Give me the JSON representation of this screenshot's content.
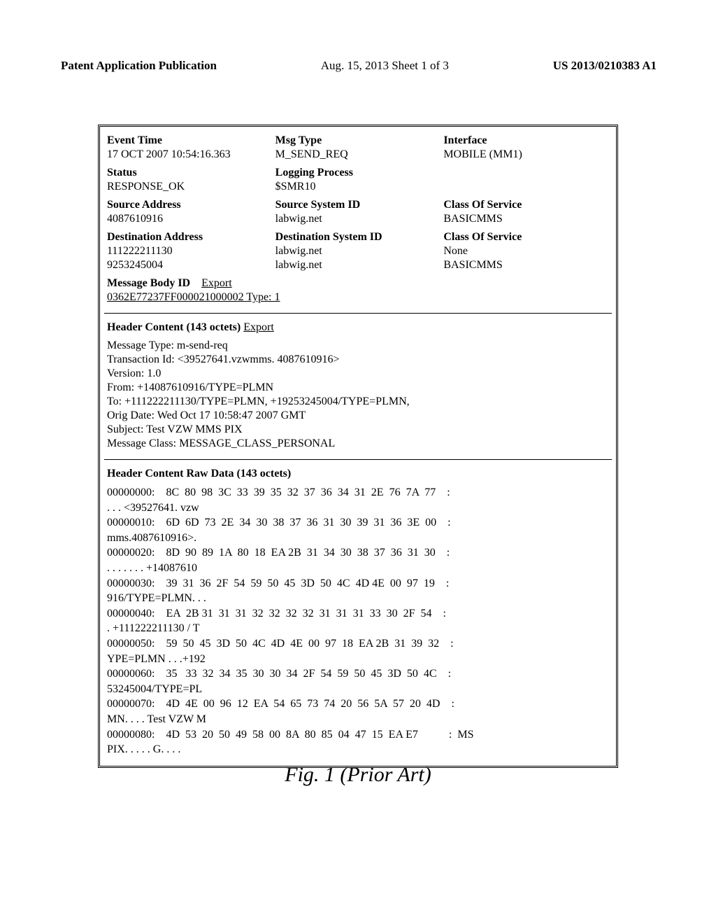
{
  "pageHeader": {
    "left": "Patent Application Publication",
    "mid": "Aug. 15, 2013  Sheet 1 of 3",
    "right": "US 2013/0210383 A1"
  },
  "meta": {
    "row1": {
      "col1_label": "Event Time",
      "col1_value": "17 OCT 2007 10:54:16.363",
      "col2_label": "Msg Type",
      "col2_value": "M_SEND_REQ",
      "col3_label": "Interface",
      "col3_value": "MOBILE (MM1)"
    },
    "row2": {
      "col1_label": "Status",
      "col1_value": "RESPONSE_OK",
      "col2_label": "Logging Process",
      "col2_value": "$SMR10"
    },
    "row3": {
      "col1_label": "Source Address",
      "col1_value": "4087610916",
      "col2_label": "Source System ID",
      "col2_value": "labwig.net",
      "col3_label": "Class Of Service",
      "col3_value": "BASICMMS"
    },
    "row4": {
      "col1_label": "Destination Address",
      "col1_value1": "111222211130",
      "col1_value2": "9253245004",
      "col2_label": "Destination System ID",
      "col2_value1": "labwig.net",
      "col2_value2": "labwig.net",
      "col3_label": "Class Of Service",
      "col3_value1": "None",
      "col3_value2": "BASICMMS"
    },
    "msgbody": {
      "label": "Message Body ID",
      "export": "Export",
      "value": "0362E77237FF000021000002 Type: 1"
    }
  },
  "headerContent": {
    "title": "Header Content (143 octets)",
    "export": "Export",
    "lines": {
      "l1": "Message Type: m-send-req",
      "l2": "Transaction Id: <39527641.vzwmms. 4087610916>",
      "l3": "Version: 1.0",
      "l4": "From: +14087610916/TYPE=PLMN",
      "l5": "To:  +111222211130/TYPE=PLMN, +19253245004/TYPE=PLMN,",
      "l6": "Orig Date: Wed Oct 17 10:58:47 2007 GMT",
      "l7": "Subject: Test VZW MMS PIX",
      "l8": "Message Class: MESSAGE_CLASS_PERSONAL"
    }
  },
  "rawData": {
    "title": "Header Content Raw Data (143 octets)",
    "body": "00000000:    8C  80  98  3C  33  39  35  32  37  36  34  31  2E  76  7A  77    :\n. . . <39527641. vzw\n00000010:    6D  6D  73  2E  34  30  38  37  36  31  30  39  31  36  3E  00    :\nmms.4087610916>.\n00000020:    8D  90  89  1A  80  18  EA 2B  31  34  30  38  37  36  31  30    :\n. . . . . . . +14087610\n00000030:    39  31  36  2F  54  59  50  45  3D  50  4C  4D 4E  00  97  19    :\n916/TYPE=PLMN. . .\n00000040:    EA  2B 31  31  31  32  32  32  32  31  31  31  33  30  2F  54    :\n. +111222211130 / T\n00000050:    59  50  45  3D  50  4C  4D  4E  00  97  18  EA 2B  31  39  32    :\nYPE=PLMN . . .+192\n00000060:    35   33  32  34  35  30  30  34  2F  54  59  50  45  3D  50  4C    :\n53245004/TYPE=PL\n00000070:    4D  4E  00  96  12  EA  54  65  73  74  20  56  5A  57  20  4D    :\nMN. . . . Test VZW M\n00000080:    4D  53  20  50  49  58  00  8A  80  85  04  47  15  EA E7           :  MS\nPIX. . . . . G. . . ."
  },
  "caption": "Fig. 1 (Prior Art)"
}
